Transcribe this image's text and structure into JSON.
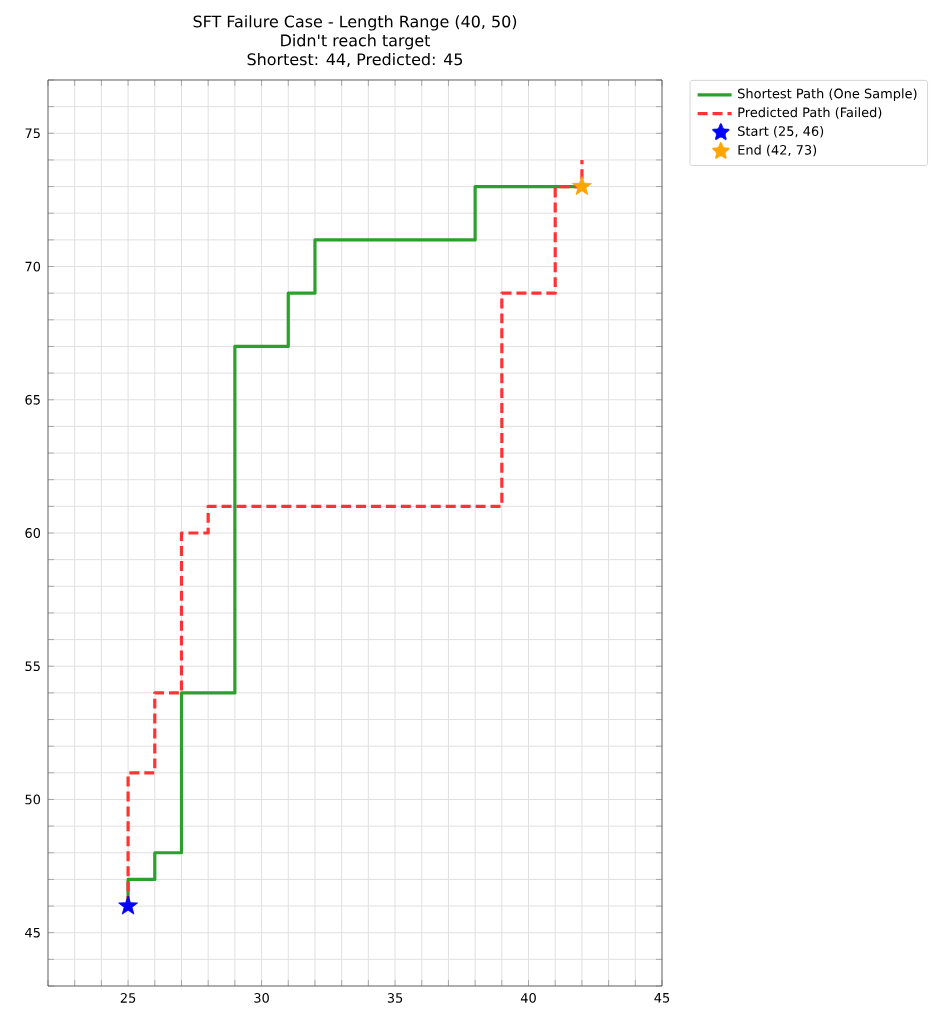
{
  "chart_data": {
    "type": "line",
    "title": "SFT Failure Case - Length Range (40, 50)",
    "subtitle": "Didn't reach target",
    "annotations": [
      "Shortest: 44, Predicted: 45"
    ],
    "xlim": [
      22,
      45
    ],
    "ylim": [
      43,
      77
    ],
    "xticks": [
      {
        "value": 22,
        "label": null
      },
      {
        "value": 23,
        "label": null
      },
      {
        "value": 24,
        "label": null
      },
      25,
      {
        "value": 26,
        "label": null
      },
      {
        "value": 27,
        "label": null
      },
      {
        "value": 28,
        "label": null
      },
      {
        "value": 29,
        "label": null
      },
      30,
      {
        "value": 31,
        "label": null
      },
      {
        "value": 32,
        "label": null
      },
      {
        "value": 33,
        "label": null
      },
      {
        "value": 34,
        "label": null
      },
      35,
      {
        "value": 36,
        "label": null
      },
      {
        "value": 37,
        "label": null
      },
      {
        "value": 38,
        "label": null
      },
      {
        "value": 39,
        "label": null
      },
      40,
      {
        "value": 41,
        "label": null
      },
      {
        "value": 42,
        "label": null
      },
      {
        "value": 43,
        "label": null
      },
      {
        "value": 44,
        "label": null
      },
      45
    ],
    "yticks": [
      {
        "value": 43,
        "label": null
      },
      {
        "value": 44,
        "label": null
      },
      45,
      {
        "value": 46,
        "label": null
      },
      {
        "value": 47,
        "label": null
      },
      {
        "value": 48,
        "label": null
      },
      {
        "value": 49,
        "label": null
      },
      50,
      {
        "value": 51,
        "label": null
      },
      {
        "value": 52,
        "label": null
      },
      {
        "value": 53,
        "label": null
      },
      {
        "value": 54,
        "label": null
      },
      55,
      {
        "value": 56,
        "label": null
      },
      {
        "value": 57,
        "label": null
      },
      {
        "value": 58,
        "label": null
      },
      {
        "value": 59,
        "label": null
      },
      60,
      {
        "value": 61,
        "label": null
      },
      {
        "value": 62,
        "label": null
      },
      {
        "value": 63,
        "label": null
      },
      {
        "value": 64,
        "label": null
      },
      65,
      {
        "value": 66,
        "label": null
      },
      {
        "value": 67,
        "label": null
      },
      {
        "value": 68,
        "label": null
      },
      {
        "value": 69,
        "label": null
      },
      70,
      {
        "value": 71,
        "label": null
      },
      {
        "value": 72,
        "label": null
      },
      {
        "value": 73,
        "label": null
      },
      {
        "value": 74,
        "label": null
      },
      75,
      {
        "value": 76,
        "label": null
      },
      {
        "value": 77,
        "label": null
      }
    ],
    "grid": true,
    "legend": "top right",
    "series": [
      {
        "name": "Shortest Path (One Sample)",
        "color": "#2ca02c",
        "line_style": "solid",
        "x": [
          25,
          25,
          26,
          26,
          27,
          27,
          29,
          29,
          31,
          31,
          32,
          32,
          38,
          38,
          42
        ],
        "values": [
          46,
          47,
          47,
          48,
          48,
          54,
          54,
          67,
          67,
          69,
          69,
          71,
          71,
          73,
          73
        ]
      },
      {
        "name": "Predicted Path (Failed)",
        "color": "#ff3333",
        "line_style": "dashed",
        "x": [
          25,
          25,
          26,
          26,
          27,
          27,
          28,
          28,
          39,
          39,
          41,
          41,
          42,
          42
        ],
        "values": [
          46,
          51,
          51,
          54,
          54,
          60,
          60,
          61,
          61,
          69,
          69,
          73,
          73,
          74
        ]
      },
      {
        "name": "Start (25, 46)",
        "type": "scatter",
        "marker": "star",
        "color": "#0000ff",
        "x": [
          25
        ],
        "values": [
          46
        ]
      },
      {
        "name": "End (42, 73)",
        "type": "scatter",
        "marker": "star",
        "color": "#ffa500",
        "x": [
          42
        ],
        "values": [
          73
        ]
      }
    ]
  }
}
